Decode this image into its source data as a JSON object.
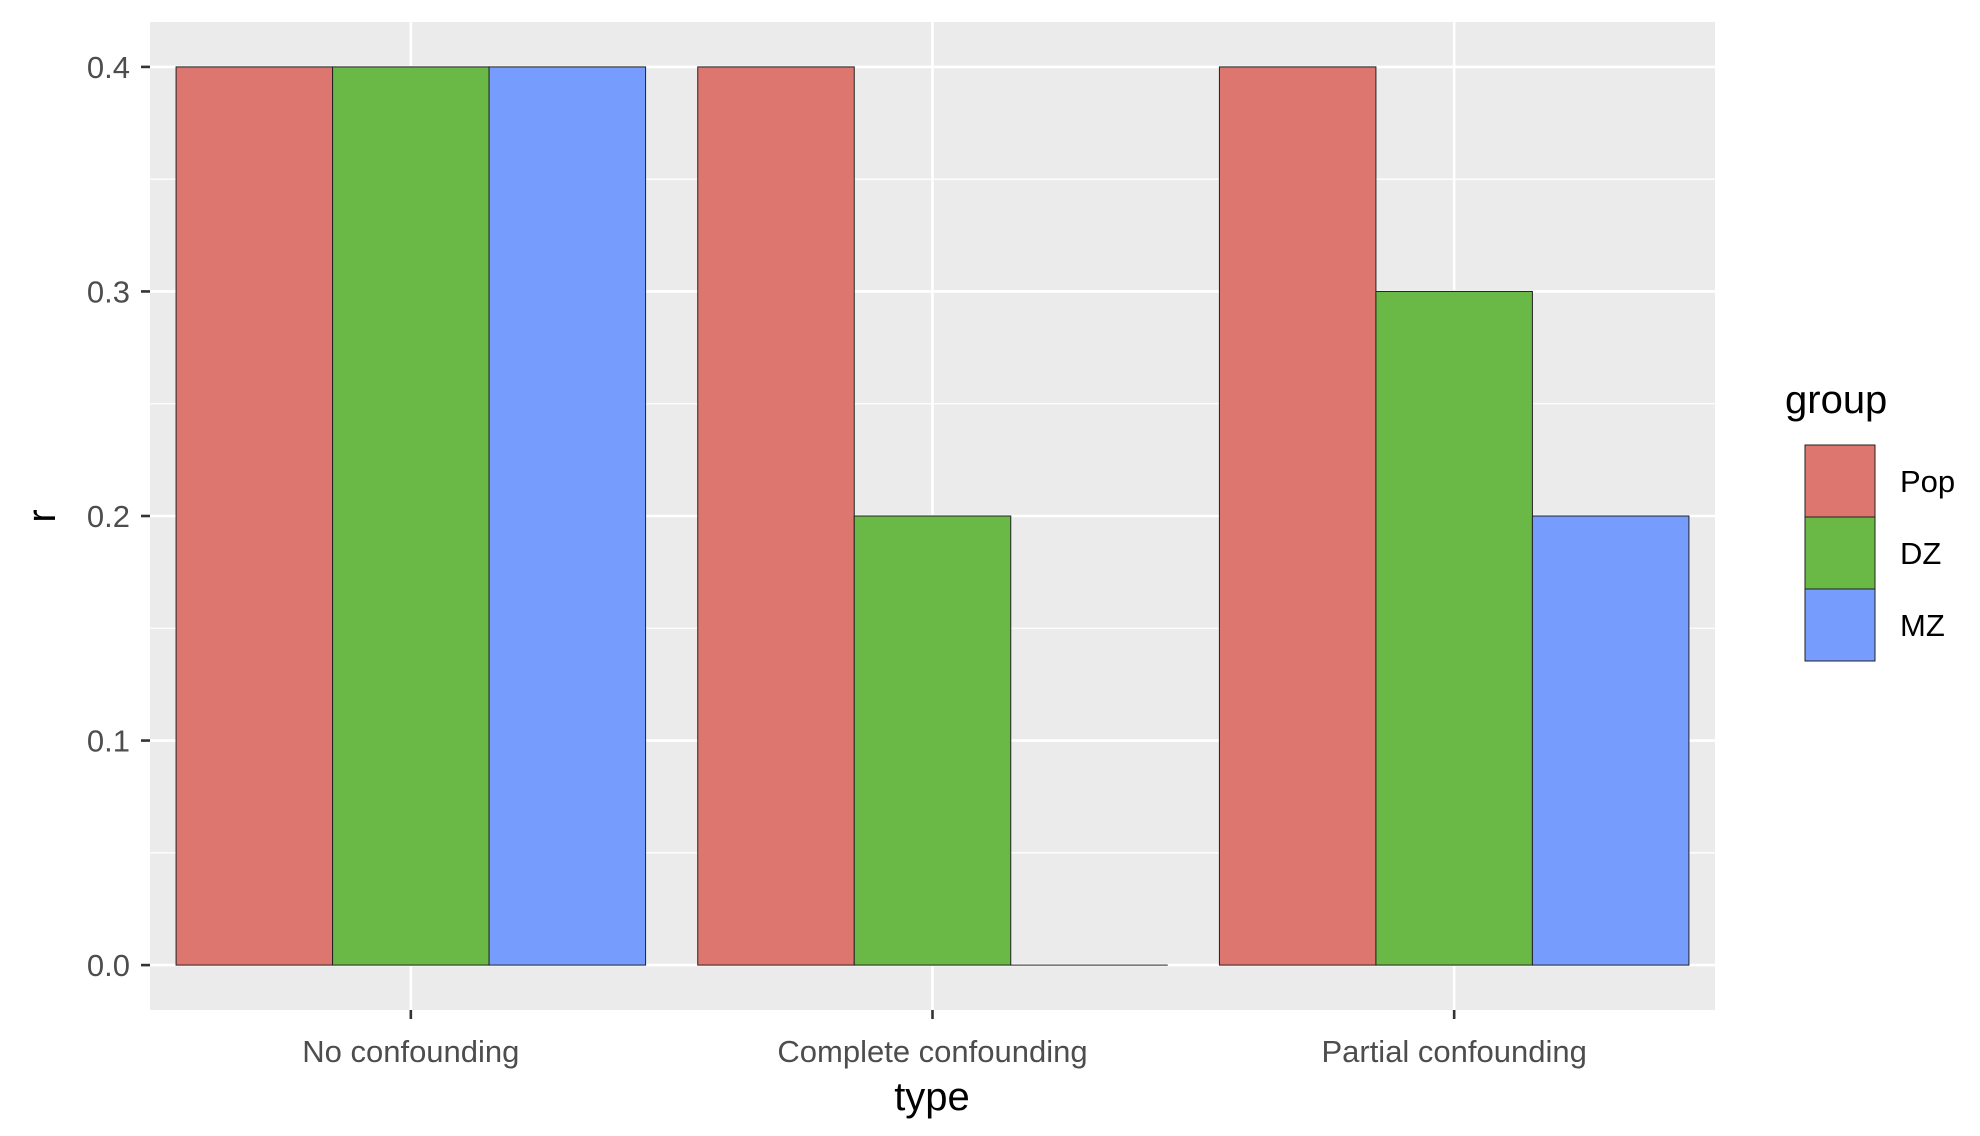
{
  "chart_data": {
    "type": "bar",
    "categories": [
      "No confounding",
      "Complete confounding",
      "Partial confounding"
    ],
    "series": [
      {
        "name": "Pop",
        "values": [
          0.4,
          0.4,
          0.4
        ],
        "color": "#DD766F"
      },
      {
        "name": "DZ",
        "values": [
          0.4,
          0.2,
          0.3
        ],
        "color": "#6AB946"
      },
      {
        "name": "MZ",
        "values": [
          0.4,
          0.0,
          0.2
        ],
        "color": "#769CFD"
      }
    ],
    "title": "",
    "xlabel": "type",
    "ylabel": "r",
    "ylim": [
      -0.02,
      0.42
    ],
    "yticks": [
      0.0,
      0.1,
      0.2,
      0.3,
      0.4
    ],
    "ytick_labels": [
      "0.0",
      "0.1",
      "0.2",
      "0.3",
      "0.4"
    ],
    "grid": true,
    "panel_background": "#EBEBEB",
    "legend": {
      "title": "group",
      "position": "right"
    }
  }
}
